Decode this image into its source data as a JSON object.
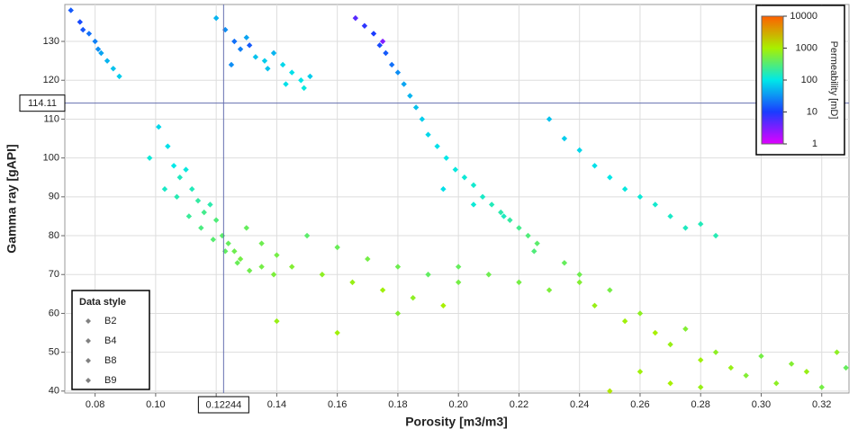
{
  "chart_data": {
    "type": "scatter",
    "x_label": "Porosity [m3/m3]",
    "y_label": "Gamma ray [gAPI]",
    "xlim": [
      0.07,
      0.329
    ],
    "ylim": [
      39.5,
      139.5
    ],
    "xticks": [
      0.08,
      {
        "value": 0.1,
        "label": "0.10"
      },
      0.12,
      0.14,
      0.16,
      0.18,
      {
        "value": 0.2,
        "label": "0.20"
      },
      0.22,
      0.24,
      0.26,
      0.28,
      {
        "value": 0.3,
        "label": "0.30"
      },
      0.32
    ],
    "yticks": [
      40,
      50,
      60,
      70,
      80,
      90,
      100,
      110,
      120,
      130
    ],
    "grid": true,
    "crosshair": {
      "x": 0.12244,
      "y": 114.11
    },
    "colorbar": {
      "label": "Permeability [mD]",
      "log": true,
      "ticks": [
        1,
        10,
        100,
        1000,
        10000
      ],
      "colors": [
        "#e000ff",
        "#1a3cff",
        "#00e8e8",
        "#a8f000",
        "#ff6000"
      ]
    },
    "legend": {
      "title": "Data style",
      "corner": "bottom-left",
      "marker_color": "#808080"
    },
    "series": [
      {
        "name": "B2",
        "x": [
          0.072,
          0.075,
          0.078,
          0.08,
          0.082,
          0.084,
          0.086,
          0.088,
          0.076,
          0.081,
          0.098,
          0.101,
          0.104,
          0.106,
          0.108,
          0.11,
          0.112,
          0.114,
          0.116,
          0.118,
          0.12,
          0.122,
          0.124,
          0.126,
          0.128,
          0.103,
          0.107,
          0.111,
          0.115,
          0.119,
          0.123,
          0.127,
          0.131,
          0.135,
          0.139
        ],
        "y": [
          138,
          135,
          132,
          130,
          127,
          125,
          123,
          121,
          133,
          128,
          100,
          108,
          103,
          98,
          95,
          97,
          92,
          89,
          86,
          88,
          84,
          80,
          78,
          76,
          74,
          92,
          90,
          85,
          82,
          79,
          76,
          73,
          71,
          72,
          70
        ],
        "perm": [
          15,
          12,
          20,
          25,
          40,
          50,
          60,
          70,
          14,
          30,
          120,
          80,
          90,
          100,
          150,
          110,
          160,
          200,
          250,
          180,
          300,
          350,
          400,
          450,
          500,
          140,
          170,
          220,
          280,
          330,
          380,
          420,
          460,
          500,
          550
        ]
      },
      {
        "name": "B4",
        "x": [
          0.12,
          0.123,
          0.126,
          0.128,
          0.13,
          0.133,
          0.136,
          0.139,
          0.142,
          0.145,
          0.148,
          0.151,
          0.125,
          0.131,
          0.137,
          0.143,
          0.149,
          0.13,
          0.135,
          0.14,
          0.145,
          0.15,
          0.155,
          0.16,
          0.165,
          0.17,
          0.175,
          0.18,
          0.185,
          0.19,
          0.195,
          0.2,
          0.14,
          0.16,
          0.18
        ],
        "y": [
          136,
          133,
          130,
          128,
          131,
          126,
          125,
          127,
          124,
          122,
          120,
          121,
          124,
          129,
          123,
          119,
          118,
          82,
          78,
          75,
          72,
          80,
          70,
          77,
          68,
          74,
          66,
          72,
          64,
          70,
          62,
          68,
          58,
          55,
          60
        ],
        "perm": [
          50,
          30,
          20,
          25,
          40,
          60,
          70,
          50,
          80,
          90,
          100,
          70,
          30,
          15,
          60,
          90,
          110,
          400,
          450,
          500,
          600,
          350,
          700,
          420,
          800,
          500,
          900,
          450,
          700,
          380,
          1000,
          500,
          800,
          900,
          600
        ]
      },
      {
        "name": "B8",
        "x": [
          0.166,
          0.169,
          0.172,
          0.174,
          0.176,
          0.178,
          0.18,
          0.182,
          0.184,
          0.186,
          0.188,
          0.175,
          0.19,
          0.193,
          0.196,
          0.199,
          0.202,
          0.205,
          0.208,
          0.211,
          0.214,
          0.217,
          0.22,
          0.223,
          0.226,
          0.2,
          0.21,
          0.22,
          0.23,
          0.195,
          0.205,
          0.215,
          0.225,
          0.235,
          0.24
        ],
        "y": [
          136,
          134,
          132,
          129,
          127,
          124,
          122,
          119,
          116,
          113,
          110,
          130,
          106,
          103,
          100,
          97,
          95,
          93,
          90,
          88,
          86,
          84,
          82,
          80,
          78,
          72,
          70,
          68,
          66,
          92,
          88,
          85,
          76,
          73,
          70
        ],
        "perm": [
          5,
          8,
          10,
          12,
          15,
          20,
          30,
          40,
          50,
          60,
          70,
          3,
          80,
          90,
          100,
          110,
          120,
          130,
          140,
          160,
          180,
          200,
          250,
          300,
          350,
          400,
          450,
          500,
          550,
          90,
          120,
          150,
          300,
          400,
          450
        ]
      },
      {
        "name": "B9",
        "x": [
          0.24,
          0.245,
          0.25,
          0.255,
          0.26,
          0.265,
          0.27,
          0.275,
          0.28,
          0.285,
          0.29,
          0.295,
          0.3,
          0.305,
          0.31,
          0.315,
          0.32,
          0.325,
          0.328,
          0.25,
          0.26,
          0.27,
          0.28,
          0.23,
          0.235,
          0.24,
          0.245,
          0.25,
          0.255,
          0.26,
          0.265,
          0.27,
          0.275,
          0.28,
          0.285
        ],
        "y": [
          68,
          62,
          66,
          58,
          60,
          55,
          52,
          56,
          48,
          50,
          46,
          44,
          49,
          42,
          47,
          45,
          41,
          50,
          46,
          40,
          45,
          42,
          41,
          110,
          105,
          102,
          98,
          95,
          92,
          90,
          88,
          85,
          82,
          83,
          80
        ],
        "perm": [
          600,
          800,
          500,
          900,
          700,
          1000,
          800,
          600,
          900,
          700,
          800,
          600,
          500,
          700,
          600,
          800,
          500,
          700,
          400,
          1200,
          900,
          1000,
          800,
          60,
          70,
          80,
          90,
          100,
          110,
          120,
          130,
          140,
          150,
          160,
          170
        ]
      }
    ]
  }
}
